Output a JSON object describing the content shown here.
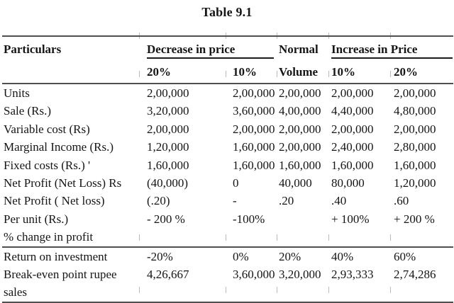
{
  "title": "Table 9.1",
  "header": {
    "particulars": "Particulars",
    "decrease_group": "Decrease in price",
    "normal_line1": "Normal",
    "normal_line2": "Volume",
    "increase_group": "Increase in Price",
    "decrease_sub": [
      "20%",
      "10%"
    ],
    "increase_sub": [
      "10%",
      "20%"
    ]
  },
  "rows": [
    {
      "label": "Units",
      "cells": [
        "2,00,000",
        "2,00,000",
        "2,00,000",
        "2,00,000",
        "2,00,000"
      ]
    },
    {
      "label": "Sale (Rs.)",
      "cells": [
        "3,20,000",
        "3,60,000",
        "4,00,000",
        "4,40,000",
        "4,80,000"
      ]
    },
    {
      "label": "Variable cost (Rs)",
      "cells": [
        "2,00,000",
        "2,00,000",
        "2,00,000",
        "2,00,000",
        "2,00,000"
      ]
    },
    {
      "label": "Marginal Income (Rs.)",
      "cells": [
        "1,20,000",
        "1,60,000",
        "2,00,000",
        "2,40,000",
        "2,80,000"
      ]
    },
    {
      "label": "Fixed costs (Rs.) '",
      "cells": [
        "1,60,000",
        "1,60,000",
        "1,60,000",
        "1,60,000",
        "1,60,000"
      ]
    },
    {
      "label": "Net Profit (Net Loss) Rs",
      "cells": [
        "(40,000)",
        "0",
        "40,000",
        "80,000",
        "1,20,000"
      ]
    },
    {
      "label": "Net Profit ( Net loss)",
      "cells": [
        "(.20)",
        "-",
        ".20",
        ".40",
        ".60"
      ]
    },
    {
      "label": "Per unit (Rs.)",
      "cells": [
        "- 200 %",
        "-100%",
        "",
        "+ 100%",
        "+ 200 %"
      ]
    },
    {
      "label": "% change in profit",
      "cells": [
        "",
        "",
        "",
        "",
        ""
      ],
      "rule_below": true
    },
    {
      "label": "Return on investment",
      "cells": [
        "-20%",
        "0%",
        "20%",
        "40%",
        "60%"
      ]
    },
    {
      "label": "Break-even point rupee",
      "cells": [
        "4,26,667",
        "3,60,000",
        "3,20,000",
        "2,93,333",
        "2,74,286"
      ]
    },
    {
      "label": "sales",
      "cells": [
        "",
        "",
        "",
        "",
        ""
      ],
      "rule_below": true
    }
  ]
}
